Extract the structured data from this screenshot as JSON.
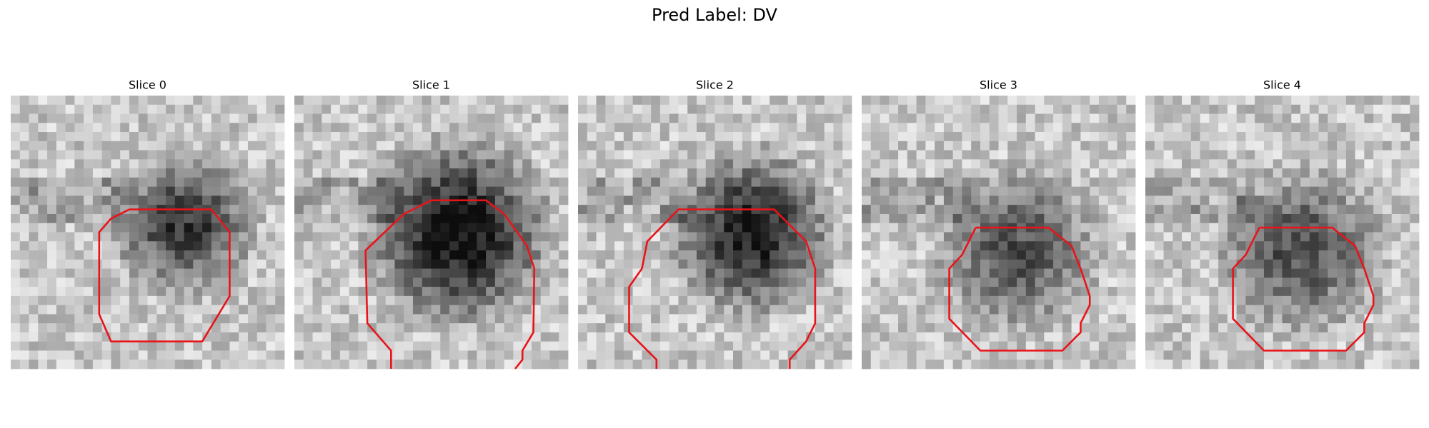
{
  "title": "Pred Label: DV",
  "panels": [
    {
      "title": "Slice 0"
    },
    {
      "title": "Slice 1"
    },
    {
      "title": "Slice 2"
    },
    {
      "title": "Slice 3"
    },
    {
      "title": "Slice 4"
    }
  ]
}
